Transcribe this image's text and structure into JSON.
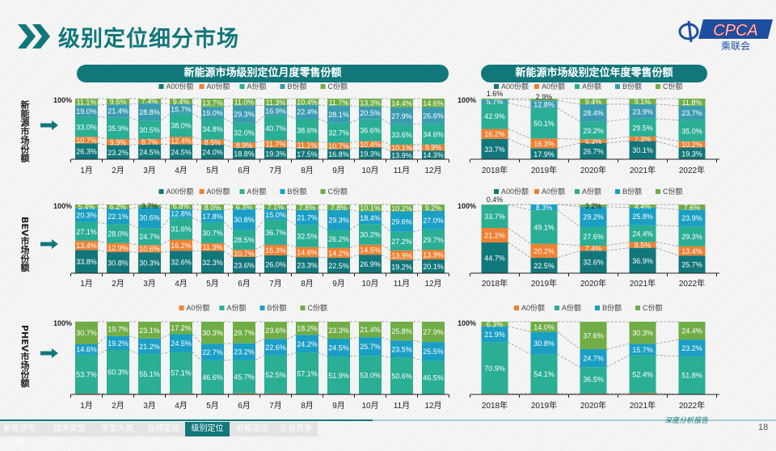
{
  "header": {
    "title": "级别定位细分市场",
    "logo": {
      "text": "CPCA",
      "sub": "乘联会",
      "emblem": "CPCA"
    }
  },
  "panels": {
    "monthly_title": "新能源市场级别定位月度零售份额",
    "annual_title": "新能源市场级别定位年度零售份额"
  },
  "row_labels": [
    "新能源市场份额",
    "BEV市场份额",
    "PHEV市场份额"
  ],
  "colors": {
    "A00份额": "#12777a",
    "A0份额": "#ee8133",
    "A份额": "#2aae94",
    "B份额": "#3a9bb0",
    "B份额_bev_phev": "#1a9ec4",
    "C份额": "#70ad47",
    "accent": "#12777a"
  },
  "chart_data": [
    {
      "type": "bar",
      "stacked": true,
      "ylim": [
        0,
        100
      ],
      "ytick": "100%",
      "categories": [
        "1月",
        "2月",
        "3月",
        "4月",
        "5月",
        "6月",
        "7月",
        "8月",
        "9月",
        "10月",
        "11月",
        "12月"
      ],
      "series": [
        {
          "name": "A00份额",
          "values": [
            26.3,
            23.2,
            24.5,
            24.5,
            24.0,
            18.8,
            19.3,
            17.5,
            16.8,
            19.3,
            13.9,
            14.3
          ]
        },
        {
          "name": "A0份额",
          "values": [
            10.7,
            9.9,
            8.7,
            12.4,
            8.5,
            8.9,
            11.7,
            11.1,
            10.7,
            10.4,
            10.1,
            9.9
          ]
        },
        {
          "name": "A份额",
          "values": [
            33.0,
            35.9,
            30.5,
            38.0,
            34.8,
            32.0,
            40.7,
            38.6,
            32.7,
            36.6,
            33.6,
            34.6
          ]
        },
        {
          "name": "B份额",
          "values": [
            19.0,
            21.4,
            28.8,
            15.7,
            19.0,
            29.3,
            16.9,
            22.4,
            28.1,
            20.5,
            27.9,
            26.6
          ]
        },
        {
          "name": "C份额",
          "values": [
            11.1,
            9.5,
            7.4,
            9.4,
            13.7,
            11.0,
            11.3,
            10.4,
            11.7,
            13.3,
            14.4,
            14.6
          ]
        }
      ]
    },
    {
      "type": "bar",
      "stacked": true,
      "ylim": [
        0,
        100
      ],
      "ytick": "100%",
      "categories": [
        "2018年",
        "2019年",
        "2020年",
        "2021年",
        "2022年"
      ],
      "series": [
        {
          "name": "A00份额",
          "values": [
            33.7,
            17.9,
            26.7,
            30.1,
            19.3
          ]
        },
        {
          "name": "A0份额",
          "values": [
            16.2,
            16.3,
            6.3,
            7.3,
            10.2
          ]
        },
        {
          "name": "A份额",
          "values": [
            42.9,
            50.1,
            29.2,
            29.5,
            35.0
          ]
        },
        {
          "name": "B份额",
          "values": [
            5.7,
            12.8,
            28.4,
            23.9,
            23.7
          ]
        },
        {
          "name": "C份额",
          "values": [
            1.6,
            2.9,
            9.4,
            9.1,
            11.8
          ]
        }
      ]
    },
    {
      "type": "bar",
      "stacked": true,
      "ylim": [
        0,
        100
      ],
      "ytick": "100%",
      "categories": [
        "1月",
        "2月",
        "3月",
        "4月",
        "5月",
        "6月",
        "7月",
        "8月",
        "9月",
        "10月",
        "11月",
        "12月"
      ],
      "series": [
        {
          "name": "A00份额",
          "values": [
            33.8,
            30.8,
            30.3,
            32.6,
            32.3,
            23.6,
            26.0,
            23.3,
            22.5,
            26.9,
            19.2,
            20.1
          ]
        },
        {
          "name": "A0份额",
          "values": [
            13.4,
            12.9,
            10.6,
            16.2,
            11.3,
            10.7,
            15.3,
            14.6,
            14.2,
            14.5,
            13.9,
            13.9
          ]
        },
        {
          "name": "A份额",
          "values": [
            27.1,
            28.0,
            24.7,
            31.6,
            30.7,
            28.5,
            36.7,
            32.5,
            26.2,
            30.2,
            27.2,
            29.7
          ]
        },
        {
          "name": "B份额",
          "values": [
            20.3,
            22.1,
            30.6,
            12.8,
            17.8,
            30.8,
            15.0,
            21.7,
            29.3,
            18.4,
            29.6,
            27.0
          ]
        },
        {
          "name": "C份额",
          "values": [
            5.4,
            6.2,
            3.7,
            6.8,
            8.0,
            6.3,
            7.1,
            7.8,
            7.8,
            10.1,
            10.2,
            9.2
          ]
        }
      ]
    },
    {
      "type": "bar",
      "stacked": true,
      "ylim": [
        0,
        100
      ],
      "ytick": "100%",
      "categories": [
        "2018年",
        "2019年",
        "2020年",
        "2021年",
        "2022年"
      ],
      "series": [
        {
          "name": "A00份额",
          "values": [
            44.7,
            22.5,
            32.6,
            36.9,
            25.7
          ]
        },
        {
          "name": "A0份额",
          "values": [
            21.2,
            20.2,
            7.4,
            8.5,
            13.4
          ]
        },
        {
          "name": "A份额",
          "values": [
            33.7,
            49.1,
            27.6,
            24.4,
            29.3
          ]
        },
        {
          "name": "B份额",
          "values": [
            null,
            8.3,
            29.2,
            25.8,
            23.9
          ]
        },
        {
          "name": "C份额",
          "values": [
            0.4,
            null,
            3.2,
            4.4,
            7.6
          ]
        }
      ]
    },
    {
      "type": "bar",
      "stacked": true,
      "ylim": [
        0,
        100
      ],
      "ytick": "100%",
      "categories": [
        "1月",
        "2月",
        "3月",
        "4月",
        "5月",
        "6月",
        "7月",
        "8月",
        "9月",
        "10月",
        "11月",
        "12月"
      ],
      "series": [
        {
          "name": "A0份额",
          "values": [
            1.1,
            0.8,
            0.6,
            1.2,
            0.4,
            1.4,
            1.2,
            0.5,
            0.3,
            0.0,
            0.1,
            0.1
          ]
        },
        {
          "name": "A份额",
          "values": [
            53.7,
            60.3,
            55.1,
            57.1,
            46.6,
            45.7,
            52.5,
            57.1,
            51.9,
            53.0,
            50.6,
            46.5
          ]
        },
        {
          "name": "B份额",
          "values": [
            14.6,
            19.2,
            21.2,
            24.5,
            22.7,
            23.2,
            22.6,
            24.2,
            24.5,
            25.7,
            23.5,
            25.5
          ]
        },
        {
          "name": "C份额",
          "values": [
            30.7,
            19.7,
            23.1,
            17.2,
            30.3,
            29.7,
            23.6,
            18.2,
            23.3,
            21.4,
            25.8,
            27.9
          ]
        }
      ]
    },
    {
      "type": "bar",
      "stacked": true,
      "ylim": [
        0,
        100
      ],
      "ytick": "100%",
      "categories": [
        "2018年",
        "2019年",
        "2020年",
        "2021年",
        "2022年"
      ],
      "series": [
        {
          "name": "A0份额",
          "values": [
            0.9,
            1.1,
            1.1,
            1.6,
            0.5
          ]
        },
        {
          "name": "A份额",
          "values": [
            70.9,
            54.1,
            36.5,
            52.4,
            51.8
          ]
        },
        {
          "name": "B份额",
          "values": [
            21.9,
            30.8,
            24.7,
            15.7,
            23.2
          ]
        },
        {
          "name": "C份额",
          "values": [
            6.3,
            14.0,
            37.6,
            30.3,
            24.4
          ]
        }
      ]
    }
  ],
  "footer": {
    "tabs": [
      "新能源市场",
      "技术类型",
      "车型大类",
      "品牌定位",
      "级别定位",
      "价格定位",
      "企业竞争"
    ],
    "active": "级别定位",
    "slogan": "深度分析报告",
    "page": "18"
  }
}
